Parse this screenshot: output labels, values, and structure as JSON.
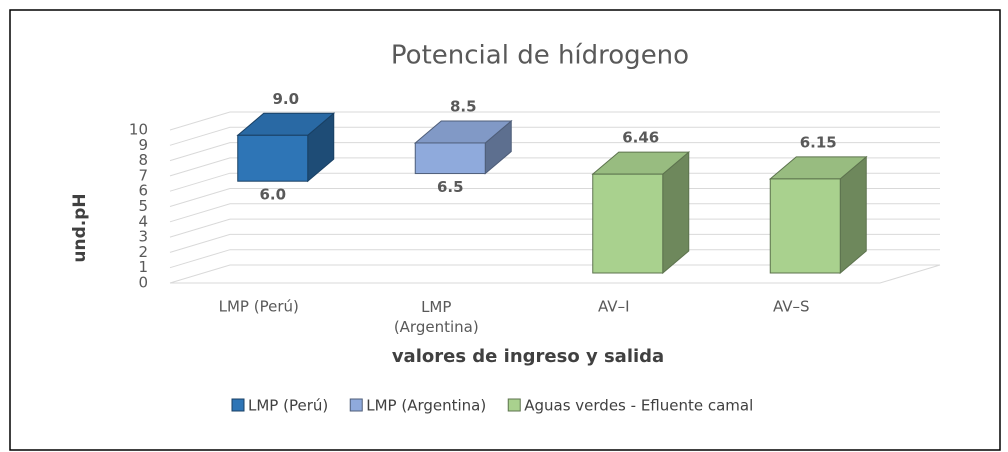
{
  "chart_data": {
    "type": "bar3d_range",
    "title": "Potencial de hídrogeno",
    "y_label": "und.pH",
    "x_label": "valores de ingreso y salida",
    "categories": [
      "LMP  (Perú)",
      [
        "LMP",
        "(Argentina)"
      ],
      "AV–I",
      "AV–S"
    ],
    "series": [
      {
        "name": "LMP  (Perú)",
        "color": "#2e75b6",
        "values": [
          9.0,
          null,
          null,
          null
        ],
        "value_labels": [
          "9.0",
          null,
          null,
          null
        ],
        "low": [
          6.0,
          null,
          null,
          null
        ],
        "low_labels": [
          "6.0",
          null,
          null,
          null
        ]
      },
      {
        "name": "LMP  (Argentina)",
        "color": "#8faadc",
        "values": [
          null,
          8.5,
          null,
          null
        ],
        "low": [
          null,
          6.5,
          null,
          null
        ]
      },
      {
        "name": "Aguas verdes - Efluente camal",
        "color": "#a9d18e",
        "values": [
          null,
          null,
          6.46,
          6.15
        ]
      }
    ],
    "ylim": [
      0,
      10
    ],
    "yticks": [
      0,
      1,
      2,
      3,
      4,
      5,
      6,
      7,
      8,
      9,
      10
    ],
    "grid": true,
    "legend": "bottom"
  }
}
